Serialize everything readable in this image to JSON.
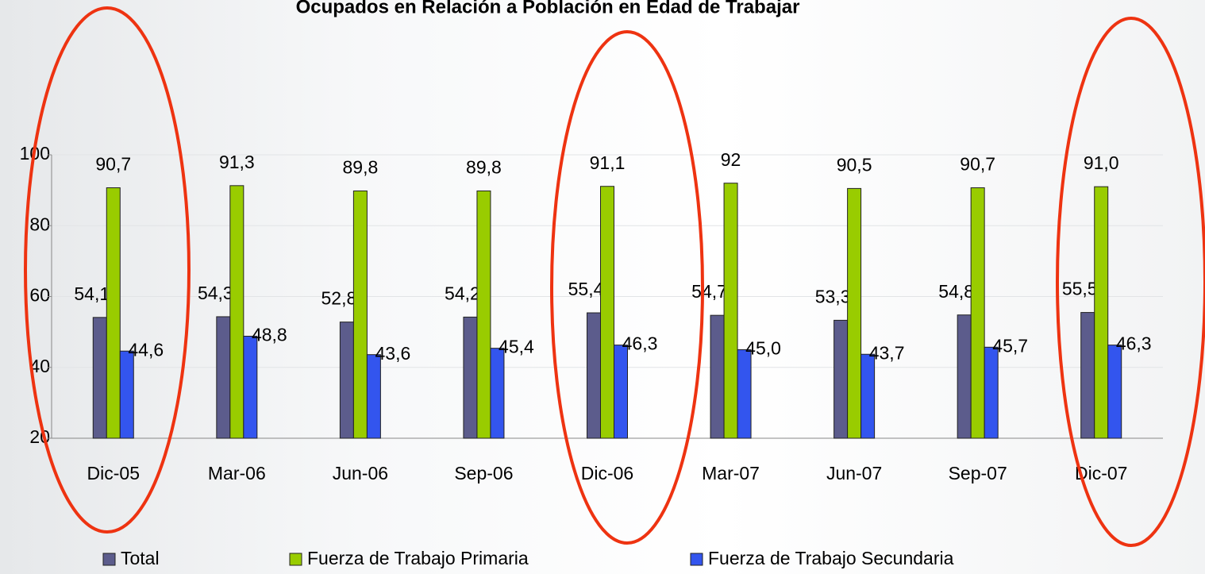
{
  "chart_data": {
    "type": "bar",
    "title": "Ocupados en Relación a Población en Edad de Trabajar",
    "categories": [
      "Dic-05",
      "Mar-06",
      "Jun-06",
      "Sep-06",
      "Dic-06",
      "Mar-07",
      "Jun-07",
      "Sep-07",
      "Dic-07"
    ],
    "series": [
      {
        "name": "Total",
        "color": "#5c5c8c",
        "values": [
          54.1,
          54.3,
          52.8,
          54.2,
          55.4,
          54.7,
          53.3,
          54.8,
          55.5
        ],
        "value_labels": [
          "54,1",
          "54,3",
          "52,8",
          "54,2",
          "55,4",
          "54,7",
          "53,3",
          "54,8",
          "55,5"
        ]
      },
      {
        "name": "Fuerza de Trabajo Primaria",
        "color": "#99cc00",
        "values": [
          90.7,
          91.3,
          89.8,
          89.8,
          91.1,
          92,
          90.5,
          90.7,
          91.0
        ],
        "value_labels": [
          "90,7",
          "91,3",
          "89,8",
          "89,8",
          "91,1",
          "92",
          "90,5",
          "90,7",
          "91,0"
        ]
      },
      {
        "name": "Fuerza de Trabajo Secundaria",
        "color": "#3355ee",
        "values": [
          44.6,
          48.8,
          43.6,
          45.4,
          46.3,
          45.0,
          43.7,
          45.7,
          46.3
        ],
        "value_labels": [
          "44,6",
          "48,8",
          "43,6",
          "45,4",
          "46,3",
          "45,0",
          "43,7",
          "45,7",
          "46,3"
        ]
      }
    ],
    "ylim": [
      20,
      100
    ],
    "yticks": [
      20,
      40,
      60,
      80,
      100
    ],
    "grid": true
  }
}
